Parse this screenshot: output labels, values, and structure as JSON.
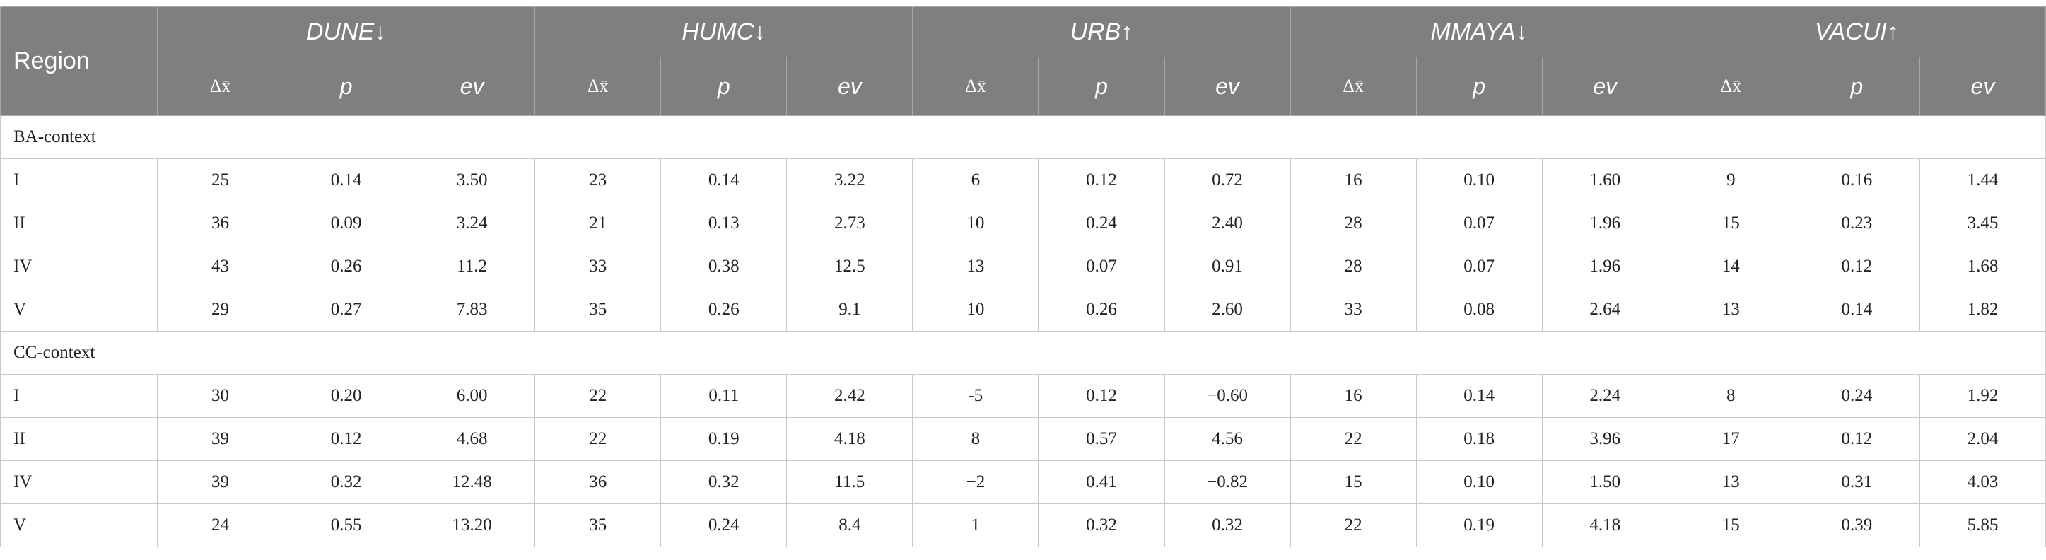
{
  "header": {
    "region": "Region",
    "metrics": [
      {
        "name": "DUNE↓",
        "cols": [
          "Δx̄",
          "p",
          "ev"
        ]
      },
      {
        "name": "HUMC↓",
        "cols": [
          "Δx̄",
          "p",
          "ev"
        ]
      },
      {
        "name": "URB↑",
        "cols": [
          "Δx̄",
          "p",
          "ev"
        ]
      },
      {
        "name": "MMAYA↓",
        "cols": [
          "Δx̄",
          "p",
          "ev"
        ]
      },
      {
        "name": "VACUI↑",
        "cols": [
          "Δx̄",
          "p",
          "ev"
        ]
      }
    ]
  },
  "table": {
    "sections": [
      {
        "label": "BA-context",
        "rows": [
          [
            "I",
            "25",
            "0.14",
            "3.50",
            "23",
            "0.14",
            "3.22",
            "6",
            "0.12",
            "0.72",
            "16",
            "0.10",
            "1.60",
            "9",
            "0.16",
            "1.44"
          ],
          [
            "II",
            "36",
            "0.09",
            "3.24",
            "21",
            "0.13",
            "2.73",
            "10",
            "0.24",
            "2.40",
            "28",
            "0.07",
            "1.96",
            "15",
            "0.23",
            "3.45"
          ],
          [
            "IV",
            "43",
            "0.26",
            "11.2",
            "33",
            "0.38",
            "12.5",
            "13",
            "0.07",
            "0.91",
            "28",
            "0.07",
            "1.96",
            "14",
            "0.12",
            "1.68"
          ],
          [
            "V",
            "29",
            "0.27",
            "7.83",
            "35",
            "0.26",
            "9.1",
            "10",
            "0.26",
            "2.60",
            "33",
            "0.08",
            "2.64",
            "13",
            "0.14",
            "1.82"
          ]
        ]
      },
      {
        "label": "CC-context",
        "rows": [
          [
            "I",
            "30",
            "0.20",
            "6.00",
            "22",
            "0.11",
            "2.42",
            "-5",
            "0.12",
            "−0.60",
            "16",
            "0.14",
            "2.24",
            "8",
            "0.24",
            "1.92"
          ],
          [
            "II",
            "39",
            "0.12",
            "4.68",
            "22",
            "0.19",
            "4.18",
            "8",
            "0.57",
            "4.56",
            "22",
            "0.18",
            "3.96",
            "17",
            "0.12",
            "2.04"
          ],
          [
            "IV",
            "39",
            "0.32",
            "12.48",
            "36",
            "0.32",
            "11.5",
            "−2",
            "0.41",
            "−0.82",
            "15",
            "0.10",
            "1.50",
            "13",
            "0.31",
            "4.03"
          ],
          [
            "V",
            "24",
            "0.55",
            "13.20",
            "35",
            "0.24",
            "8.4",
            "1",
            "0.32",
            "0.32",
            "22",
            "0.19",
            "4.18",
            "15",
            "0.39",
            "5.85"
          ]
        ]
      }
    ]
  }
}
